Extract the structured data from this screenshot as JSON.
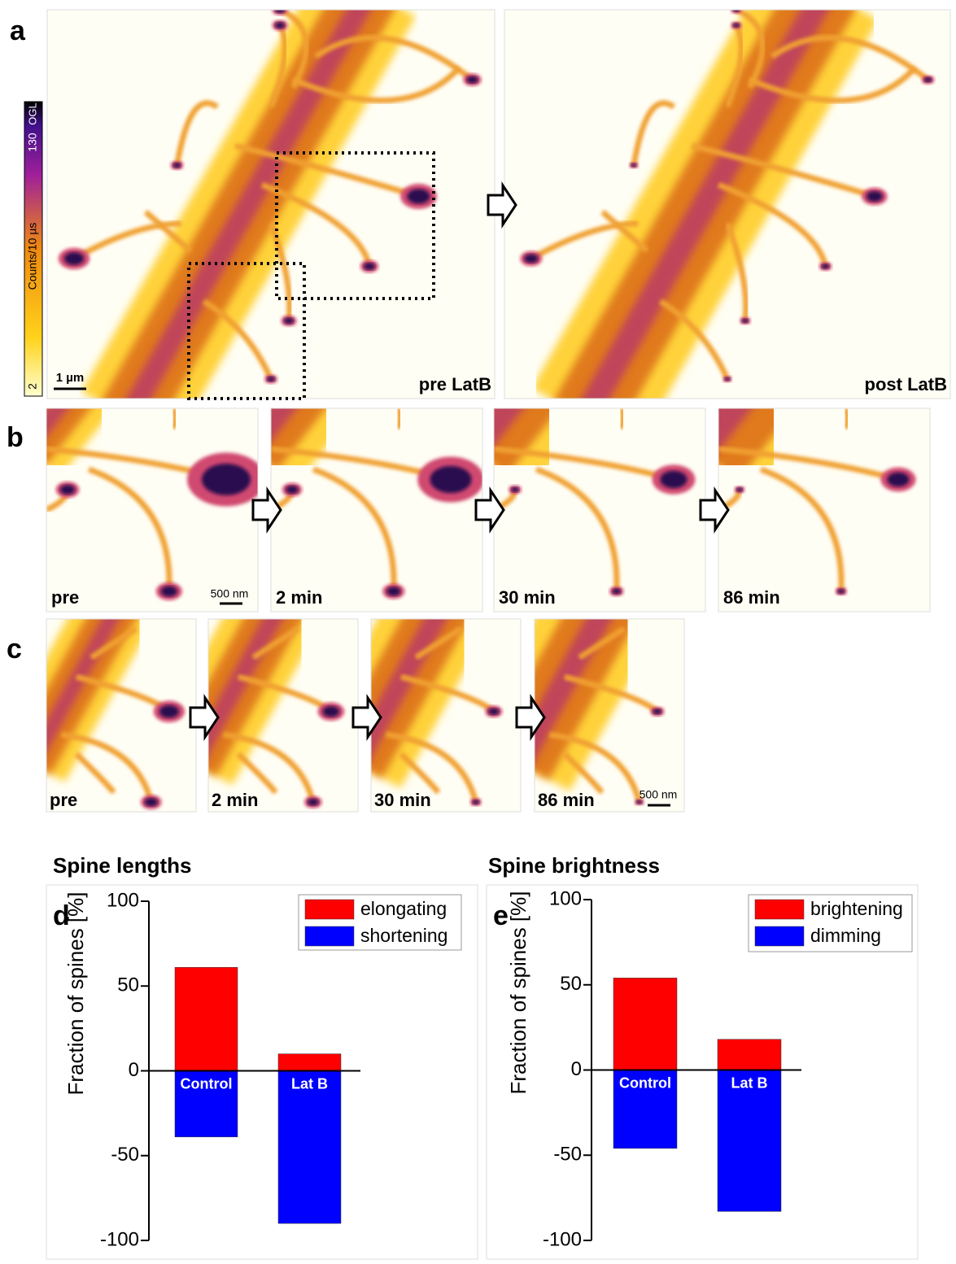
{
  "figure": {
    "a": {
      "label": "a",
      "pre": "pre LatB",
      "post": "post LatB",
      "scale": "1 µm",
      "colorbar": {
        "min": 2,
        "max": 130,
        "unit": "Counts/10 µs",
        "extra": "OGL"
      }
    },
    "b": {
      "label": "b",
      "frames": [
        "pre",
        "2 min",
        "30 min",
        "86 min"
      ],
      "scale": "500 nm"
    },
    "c": {
      "label": "c",
      "frames": [
        "pre",
        "2 min",
        "30 min",
        "86 min"
      ],
      "scale": "500 nm"
    }
  },
  "chart_data": [
    {
      "type": "bar",
      "panel": "d",
      "title": "Spine lengths",
      "y_label": "Fraction of spines [%]",
      "categories": [
        "Control",
        "Lat B"
      ],
      "series": [
        {
          "name": "elongating",
          "color": "#ff0000",
          "values": [
            61,
            10
          ]
        },
        {
          "name": "shortening",
          "color": "#0000ff",
          "values": [
            -39,
            -90
          ]
        }
      ],
      "ylim": [
        -100,
        100
      ],
      "yticks": [
        -100,
        -50,
        0,
        50,
        100
      ],
      "legend": "upper right"
    },
    {
      "type": "bar",
      "panel": "e",
      "title": "Spine brightness",
      "y_label": "Fraction of spines [%]",
      "categories": [
        "Control",
        "Lat B"
      ],
      "series": [
        {
          "name": "brightening",
          "color": "#ff0000",
          "values": [
            54,
            18
          ]
        },
        {
          "name": "dimming",
          "color": "#0000ff",
          "values": [
            -46,
            -83
          ]
        }
      ],
      "ylim": [
        -100,
        100
      ],
      "yticks": [
        -100,
        -50,
        0,
        50,
        100
      ],
      "legend": "upper right"
    }
  ]
}
